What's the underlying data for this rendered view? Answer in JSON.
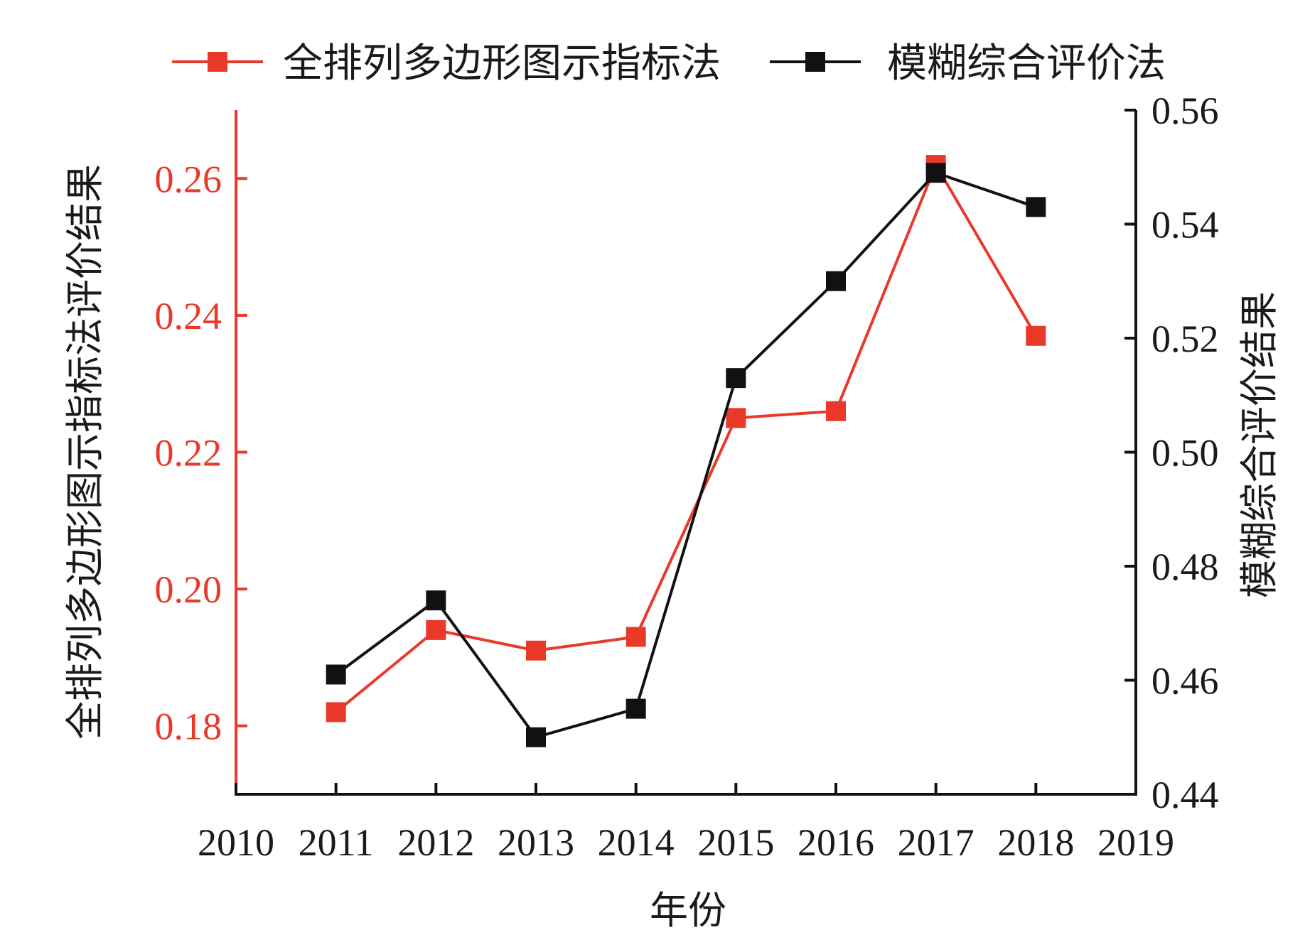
{
  "chart_data": {
    "type": "line",
    "title": "",
    "xlabel": "年份",
    "ylabel_left": "全排列多边形图示指标法评价结果",
    "ylabel_right": "模糊综合评价结果",
    "x_ticks": [
      "2010",
      "2011",
      "2012",
      "2013",
      "2014",
      "2015",
      "2016",
      "2017",
      "2018",
      "2019"
    ],
    "xlim": [
      2010,
      2019
    ],
    "ylim_left": [
      0.17,
      0.27
    ],
    "ylim_right": [
      0.44,
      0.56
    ],
    "y_ticks_left": [
      "0.18",
      "0.20",
      "0.22",
      "0.24",
      "0.26"
    ],
    "y_ticks_right": [
      "0.44",
      "0.46",
      "0.48",
      "0.50",
      "0.52",
      "0.54",
      "0.56"
    ],
    "legend_position": "top",
    "grid": false,
    "series": [
      {
        "name": "全排列多边形图示指标法",
        "axis": "left",
        "color": "#e8392b",
        "marker": "square",
        "x": [
          2011,
          2012,
          2013,
          2014,
          2015,
          2016,
          2017,
          2018
        ],
        "values": [
          0.182,
          0.194,
          0.191,
          0.193,
          0.225,
          0.226,
          0.262,
          0.237
        ]
      },
      {
        "name": "模糊综合评价法",
        "axis": "right",
        "color": "#111111",
        "marker": "square",
        "x": [
          2011,
          2012,
          2013,
          2014,
          2015,
          2016,
          2017,
          2018
        ],
        "values": [
          0.461,
          0.474,
          0.45,
          0.455,
          0.513,
          0.53,
          0.549,
          0.543
        ]
      }
    ]
  }
}
